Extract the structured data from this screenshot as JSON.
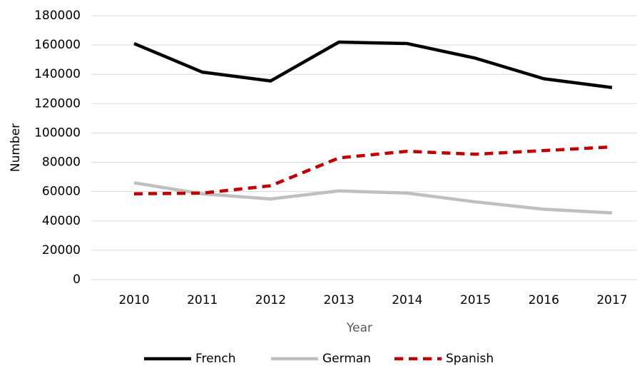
{
  "chart_data": {
    "type": "line",
    "x_label": "Year",
    "y_label": "Number",
    "categories": [
      "2010",
      "2011",
      "2012",
      "2013",
      "2014",
      "2015",
      "2016",
      "2017"
    ],
    "series": [
      {
        "name": "French",
        "color": "#000000",
        "dash": "solid",
        "values": [
          161000,
          141500,
          135500,
          162000,
          161000,
          151000,
          137000,
          131000
        ]
      },
      {
        "name": "German",
        "color": "#bfbfbf",
        "dash": "solid",
        "values": [
          66000,
          58500,
          55000,
          60500,
          59000,
          53000,
          48000,
          45500
        ]
      },
      {
        "name": "Spanish",
        "color": "#c00000",
        "dash": "dashed",
        "values": [
          58500,
          59000,
          64000,
          83000,
          87500,
          85500,
          88000,
          90500
        ]
      }
    ],
    "ylim": [
      0,
      180000
    ],
    "yticks": [
      0,
      20000,
      40000,
      60000,
      80000,
      100000,
      120000,
      140000,
      160000,
      180000
    ],
    "grid": true,
    "legend": "bottom"
  }
}
